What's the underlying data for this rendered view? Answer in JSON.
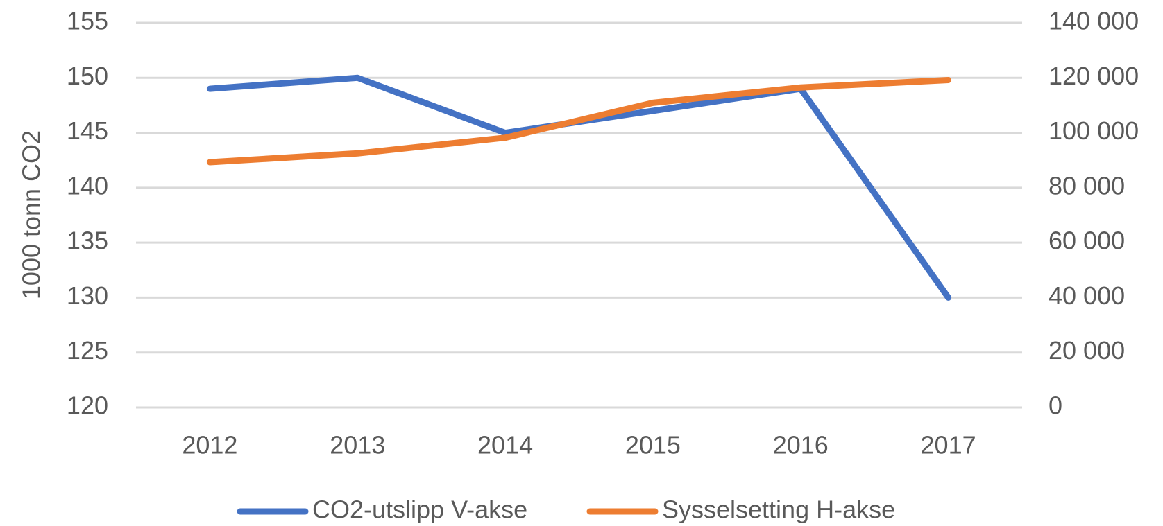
{
  "chart_data": {
    "type": "line",
    "y_label": "1000 tonn CO2",
    "categories": [
      "2012",
      "2013",
      "2014",
      "2015",
      "2016",
      "2017"
    ],
    "series": [
      {
        "name": "CO2-utslipp V-akse",
        "color": "#4472c4",
        "values": [
          149,
          150,
          145,
          147,
          149,
          130
        ]
      },
      {
        "name": "Sysselsetting H-akse",
        "color": "#ed7d31",
        "axis": "y2",
        "values": [
          89300,
          92500,
          98200,
          110900,
          116500,
          119200
        ]
      }
    ],
    "ylim": [
      120,
      155
    ],
    "yticks": [
      120,
      125,
      130,
      135,
      140,
      145,
      150,
      155
    ],
    "y2lim": [
      0,
      140000
    ],
    "y2ticks": [
      0,
      {
        "value": 20000,
        "label": "20 000"
      },
      {
        "value": 40000,
        "label": "40 000"
      },
      {
        "value": 60000,
        "label": "60 000"
      },
      {
        "value": 80000,
        "label": "80 000"
      },
      {
        "value": 100000,
        "label": "100 000"
      },
      {
        "value": 120000,
        "label": "120 000"
      },
      {
        "value": 140000,
        "label": "140 000"
      }
    ],
    "grid": true,
    "legend": "bottom"
  }
}
